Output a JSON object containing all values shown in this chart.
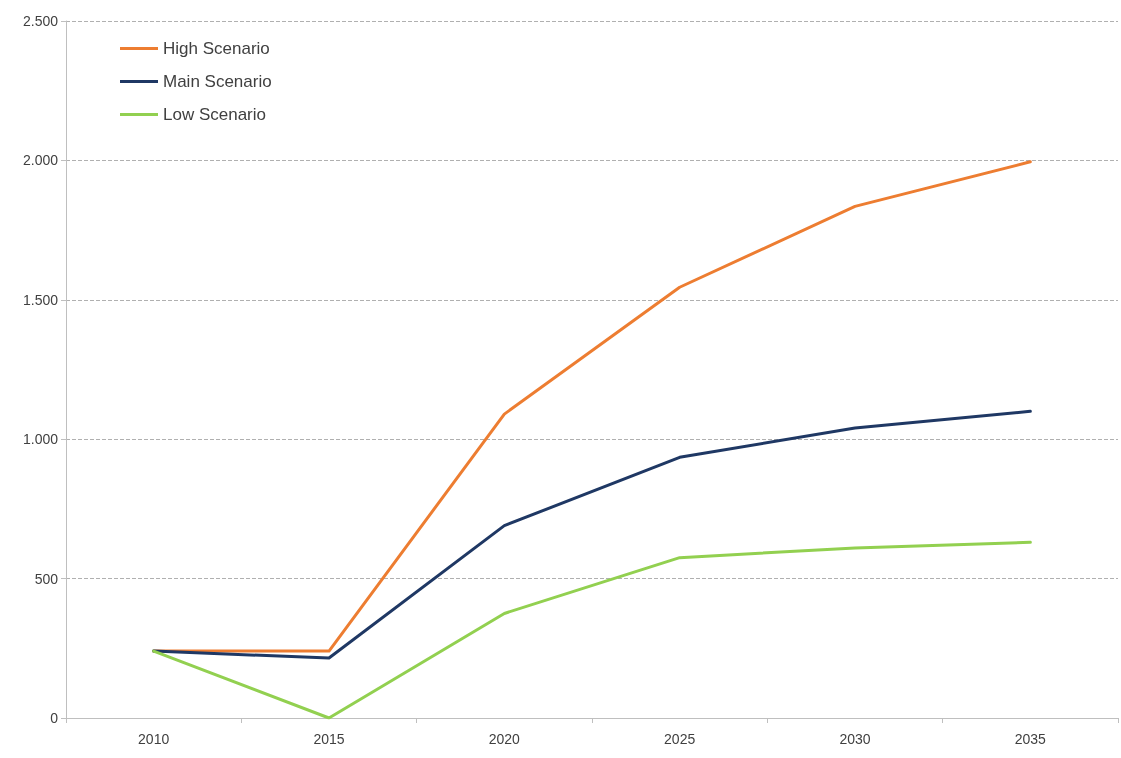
{
  "chart_data": {
    "type": "line",
    "categories": [
      "2010",
      "2015",
      "2020",
      "2025",
      "2030",
      "2035"
    ],
    "series": [
      {
        "name": "High Scenario",
        "color": "#ed7d31",
        "values": [
          240,
          240,
          1090,
          1545,
          1835,
          1995
        ]
      },
      {
        "name": "Main Scenario",
        "color": "#1f3864",
        "values": [
          240,
          215,
          690,
          935,
          1040,
          1100
        ]
      },
      {
        "name": "Low Scenario",
        "color": "#92d050",
        "values": [
          240,
          0,
          375,
          575,
          610,
          630
        ]
      }
    ],
    "ylim": [
      0,
      2500
    ],
    "yticks": [
      0,
      {
        "value": 500,
        "label": "500"
      },
      {
        "value": 1000,
        "label": "1.000"
      },
      {
        "value": 1500,
        "label": "1.500"
      },
      {
        "value": 2000,
        "label": "2.000"
      },
      {
        "value": 2500,
        "label": "2.500"
      }
    ],
    "grid": "y",
    "legend": "top left",
    "marker": "none",
    "line_style": "solid"
  }
}
